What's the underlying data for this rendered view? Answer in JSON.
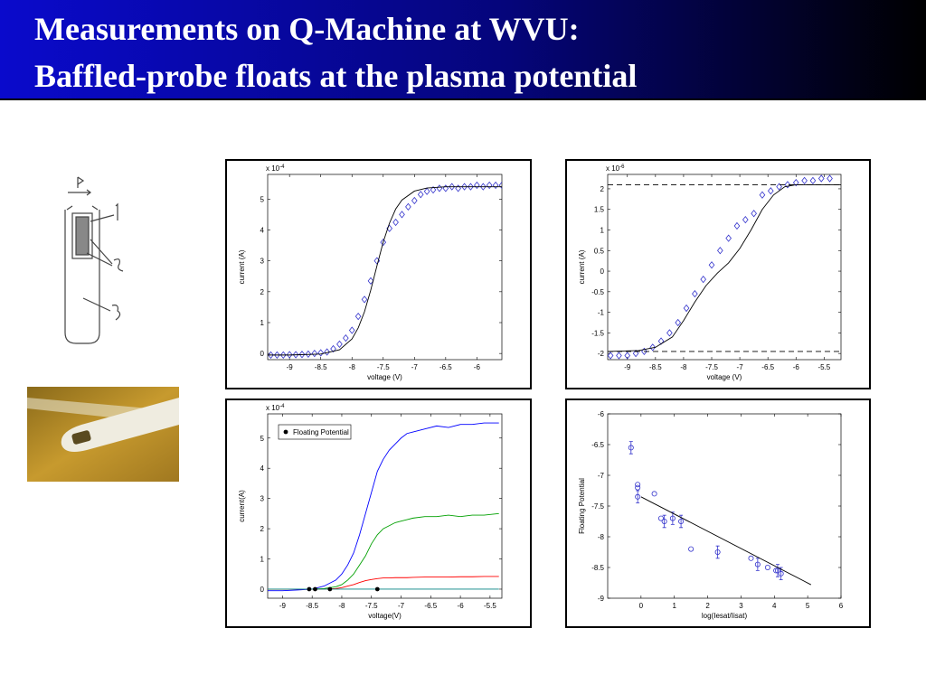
{
  "header": {
    "title_lines": [
      "Measurements on Q-Machine at WVU:",
      "Baffled-probe floats at the plasma potential"
    ]
  },
  "chart_data": [
    {
      "type": "scatter",
      "x_label": "voltage (V)",
      "y_label": "current (A)",
      "y_scale": {
        "base": "x 10",
        "exponent": "-4"
      },
      "xlim": [
        -9.35,
        -5.6
      ],
      "xticks": [
        -9,
        -8.5,
        -8,
        -7.5,
        -7,
        -6.5,
        -6
      ],
      "ylim": [
        -0.2,
        5.8
      ],
      "yticks": [
        0,
        1,
        2,
        3,
        4,
        5
      ],
      "series": [
        {
          "color": "#3333cc",
          "marker": "diamond",
          "x": [
            -9.3,
            -9.2,
            -9.1,
            -9.0,
            -8.9,
            -8.8,
            -8.7,
            -8.6,
            -8.5,
            -8.4,
            -8.3,
            -8.2,
            -8.1,
            -8.0,
            -7.9,
            -7.8,
            -7.7,
            -7.6,
            -7.5,
            -7.4,
            -7.3,
            -7.2,
            -7.1,
            -7.0,
            -6.9,
            -6.8,
            -6.7,
            -6.6,
            -6.5,
            -6.4,
            -6.3,
            -6.2,
            -6.1,
            -6.0,
            -5.9,
            -5.8,
            -5.7,
            -5.6
          ],
          "values": [
            -0.05,
            -0.05,
            -0.05,
            -0.04,
            -0.04,
            -0.03,
            -0.02,
            0,
            0.02,
            0.05,
            0.15,
            0.3,
            0.5,
            0.75,
            1.2,
            1.75,
            2.35,
            3.0,
            3.6,
            4.05,
            4.25,
            4.5,
            4.75,
            4.95,
            5.15,
            5.25,
            5.3,
            5.35,
            5.35,
            5.4,
            5.35,
            5.4,
            5.4,
            5.45,
            5.4,
            5.45,
            5.45,
            5.45
          ]
        },
        {
          "color": "#000000",
          "line": "solid",
          "x": [
            -9.35,
            -9,
            -8.5,
            -8.2,
            -8.0,
            -7.9,
            -7.8,
            -7.7,
            -7.6,
            -7.5,
            -7.4,
            -7.3,
            -7.2,
            -7.0,
            -6.8,
            -6.5,
            -6.0,
            -5.6
          ],
          "values": [
            -0.05,
            -0.05,
            -0.02,
            0.12,
            0.47,
            0.83,
            1.35,
            2.05,
            2.84,
            3.61,
            4.22,
            4.68,
            4.97,
            5.26,
            5.36,
            5.4,
            5.4,
            5.4
          ]
        }
      ]
    },
    {
      "type": "scatter",
      "x_label": "voltage (V)",
      "y_label": "current (A)",
      "y_scale": {
        "base": "x 10",
        "exponent": "-6"
      },
      "xlim": [
        -9.35,
        -5.2
      ],
      "xticks": [
        -9,
        -8.5,
        -8,
        -7.5,
        -7,
        -6.5,
        -6,
        -5.5
      ],
      "ylim": [
        -2.15,
        2.35
      ],
      "yticks": [
        -2,
        -1.5,
        -1,
        -0.5,
        0,
        0.5,
        1,
        1.5,
        2
      ],
      "series": [
        {
          "color": "#3333cc",
          "marker": "diamond",
          "x": [
            -9.3,
            -9.15,
            -9.0,
            -8.85,
            -8.7,
            -8.55,
            -8.4,
            -8.25,
            -8.1,
            -7.95,
            -7.8,
            -7.65,
            -7.5,
            -7.35,
            -7.2,
            -7.05,
            -6.9,
            -6.75,
            -6.6,
            -6.45,
            -6.3,
            -6.15,
            -6.0,
            -5.85,
            -5.7,
            -5.55,
            -5.4
          ],
          "values": [
            -2.05,
            -2.05,
            -2.05,
            -2.0,
            -1.95,
            -1.85,
            -1.7,
            -1.5,
            -1.25,
            -0.9,
            -0.55,
            -0.2,
            0.15,
            0.5,
            0.8,
            1.1,
            1.25,
            1.4,
            1.85,
            1.95,
            2.05,
            2.1,
            2.15,
            2.2,
            2.2,
            2.25,
            2.25
          ]
        },
        {
          "color": "#000000",
          "line": "solid",
          "x": [
            -9.35,
            -8.8,
            -8.5,
            -8.2,
            -8.0,
            -7.8,
            -7.6,
            -7.4,
            -7.2,
            -7.0,
            -6.8,
            -6.6,
            -6.4,
            -6.2,
            -6.0,
            -5.2
          ],
          "values": [
            -1.95,
            -1.93,
            -1.85,
            -1.6,
            -1.2,
            -0.75,
            -0.35,
            -0.05,
            0.2,
            0.55,
            1.0,
            1.5,
            1.85,
            2.05,
            2.1,
            2.1
          ]
        },
        {
          "color": "#000000",
          "line": "dashed",
          "x": [
            -9.35,
            -5.2
          ],
          "values": [
            2.1,
            2.1
          ]
        },
        {
          "color": "#000000",
          "line": "dashed",
          "x": [
            -9.35,
            -5.2
          ],
          "values": [
            -1.95,
            -1.95
          ]
        }
      ]
    },
    {
      "type": "line",
      "x_label": "voltage(V)",
      "y_label": "current(A)",
      "y_scale": {
        "base": "x 10",
        "exponent": "-4"
      },
      "xlim": [
        -9.25,
        -5.3
      ],
      "xticks": [
        -9,
        -8.5,
        -8,
        -7.5,
        -7,
        -6.5,
        -6,
        -5.5
      ],
      "ylim": [
        -0.3,
        5.8
      ],
      "yticks": [
        0,
        1,
        2,
        3,
        4,
        5
      ],
      "legend": "upper left",
      "series": [
        {
          "color": "#0000ff",
          "line": "solid",
          "x": [
            -9.25,
            -9.0,
            -8.75,
            -8.5,
            -8.3,
            -8.1,
            -8.0,
            -7.9,
            -7.8,
            -7.7,
            -7.6,
            -7.5,
            -7.4,
            -7.3,
            -7.2,
            -7.1,
            -7.0,
            -6.9,
            -6.8,
            -6.6,
            -6.4,
            -6.2,
            -6.0,
            -5.8,
            -5.6,
            -5.35
          ],
          "values": [
            -0.05,
            -0.05,
            -0.03,
            0,
            0.1,
            0.3,
            0.5,
            0.8,
            1.2,
            1.8,
            2.5,
            3.2,
            3.9,
            4.3,
            4.6,
            4.8,
            5.0,
            5.15,
            5.2,
            5.3,
            5.4,
            5.35,
            5.45,
            5.45,
            5.5,
            5.5
          ]
        },
        {
          "color": "#00a000",
          "line": "solid",
          "x": [
            -9.25,
            -9.0,
            -8.75,
            -8.5,
            -8.3,
            -8.1,
            -8.0,
            -7.9,
            -7.8,
            -7.7,
            -7.6,
            -7.5,
            -7.4,
            -7.3,
            -7.2,
            -7.1,
            -7.0,
            -6.9,
            -6.8,
            -6.6,
            -6.4,
            -6.2,
            -6.0,
            -5.8,
            -5.6,
            -5.35
          ],
          "values": [
            0,
            0,
            0,
            0,
            0.02,
            0.08,
            0.15,
            0.3,
            0.5,
            0.8,
            1.1,
            1.5,
            1.8,
            2.0,
            2.1,
            2.2,
            2.25,
            2.3,
            2.35,
            2.4,
            2.4,
            2.45,
            2.4,
            2.45,
            2.45,
            2.5
          ]
        },
        {
          "color": "#ff0000",
          "line": "solid",
          "x": [
            -9.25,
            -9.0,
            -8.75,
            -8.5,
            -8.3,
            -8.1,
            -8.0,
            -7.9,
            -7.8,
            -7.7,
            -7.6,
            -7.5,
            -7.4,
            -7.3,
            -7.2,
            -7.1,
            -7.0,
            -6.9,
            -6.8,
            -6.6,
            -6.4,
            -6.2,
            -6.0,
            -5.8,
            -5.6,
            -5.35
          ],
          "values": [
            0,
            0,
            0,
            0,
            0,
            0.02,
            0.05,
            0.1,
            0.15,
            0.22,
            0.28,
            0.32,
            0.35,
            0.37,
            0.37,
            0.38,
            0.38,
            0.38,
            0.39,
            0.4,
            0.4,
            0.4,
            0.41,
            0.41,
            0.42,
            0.42
          ]
        },
        {
          "color": "#008080",
          "line": "solid",
          "x": [
            -9.25,
            -5.35
          ],
          "values": [
            0,
            0
          ]
        },
        {
          "name": "Floating Potential",
          "color": "#000000",
          "marker": "dot",
          "x": [
            -8.55,
            -8.45,
            -8.2,
            -7.4
          ],
          "values": [
            0,
            0,
            0,
            0
          ]
        }
      ]
    },
    {
      "type": "scatter",
      "x_label": "log(Iesat/Iisat)",
      "y_label": "Floating Potential",
      "xlim": [
        -1,
        6
      ],
      "xticks": [
        0,
        1,
        2,
        3,
        4,
        5,
        6
      ],
      "ylim": [
        -9,
        -6
      ],
      "yticks": [
        -9,
        -8.5,
        -8,
        -7.5,
        -7,
        -6.5,
        -6
      ],
      "series": [
        {
          "color": "#3333cc",
          "marker": "circle",
          "x": [
            -0.3,
            -0.1,
            -0.1,
            -0.1,
            0.4,
            0.6,
            0.7,
            0.95,
            1.2,
            1.5,
            2.3,
            3.3,
            3.5,
            3.8,
            4.05,
            4.1,
            4.2
          ],
          "values": [
            -6.55,
            -7.15,
            -7.2,
            -7.35,
            -7.3,
            -7.7,
            -7.75,
            -7.7,
            -7.75,
            -8.2,
            -8.25,
            -8.35,
            -8.45,
            -8.5,
            -8.55,
            -8.55,
            -8.6
          ],
          "errors": [
            0.1,
            null,
            null,
            0.1,
            null,
            null,
            0.1,
            0.1,
            0.1,
            null,
            0.1,
            null,
            0.1,
            null,
            null,
            0.1,
            0.1
          ]
        },
        {
          "color": "#000000",
          "line": "solid",
          "x": [
            0,
            5.1
          ],
          "values": [
            -7.35,
            -8.78
          ]
        }
      ]
    }
  ]
}
